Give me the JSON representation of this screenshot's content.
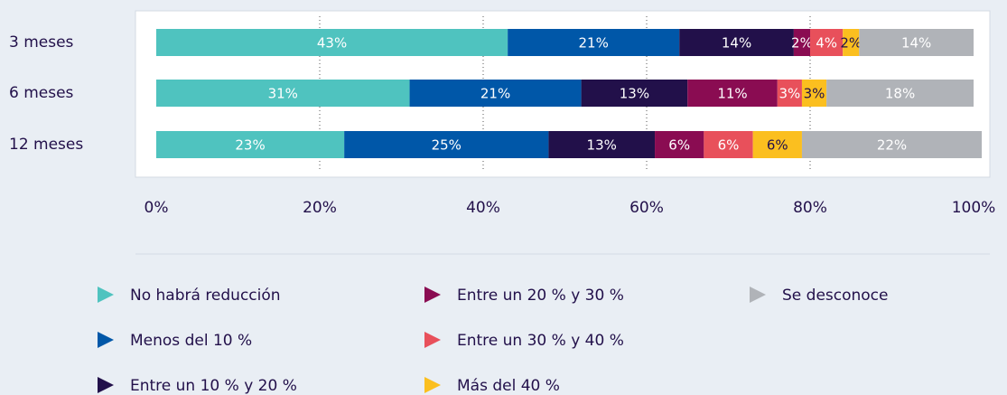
{
  "chart_data": {
    "type": "stacked-bar-horizontal",
    "categories": [
      "3 meses",
      "6 meses",
      "12 meses"
    ],
    "series": [
      {
        "name": "No habrá reducción",
        "color": "#4fc3bf",
        "values": [
          43,
          31,
          23
        ],
        "value_labels": [
          "43%",
          "31%",
          "23%"
        ]
      },
      {
        "name": "Menos del 10 %",
        "color": "#0057a8",
        "values": [
          21,
          21,
          25
        ],
        "value_labels": [
          "21%",
          "21%",
          "25%"
        ]
      },
      {
        "name": "Entre un 10 % y 20 %",
        "color": "#22104a",
        "values": [
          14,
          13,
          13
        ],
        "value_labels": [
          "14%",
          "13%",
          "13%"
        ]
      },
      {
        "name": "Entre un 20 % y 30 %",
        "color": "#8a0c52",
        "values": [
          2,
          11,
          6
        ],
        "value_labels": [
          "2%",
          "11%",
          "6%"
        ]
      },
      {
        "name": "Entre un 30 % y 40 %",
        "color": "#e8505b",
        "values": [
          4,
          3,
          6
        ],
        "value_labels": [
          "4%",
          "3%",
          "6%"
        ]
      },
      {
        "name": "Más del 40 %",
        "color": "#fbbf1f",
        "values": [
          2,
          3,
          6
        ],
        "value_labels": [
          "2%",
          "3%",
          "6%"
        ]
      },
      {
        "name": "Se desconoce",
        "color": "#b0b3b8",
        "values": [
          14,
          18,
          22
        ],
        "value_labels": [
          "14%",
          "18%",
          "22%"
        ]
      }
    ],
    "xlim": [
      0,
      100
    ],
    "xticks": [
      {
        "value": 0,
        "label": "0%"
      },
      {
        "value": 20,
        "label": "20%"
      },
      {
        "value": 40,
        "label": "40%"
      },
      {
        "value": 60,
        "label": "60%"
      },
      {
        "value": 80,
        "label": "80%"
      },
      {
        "value": 100,
        "label": "100%"
      }
    ],
    "grid": true
  }
}
